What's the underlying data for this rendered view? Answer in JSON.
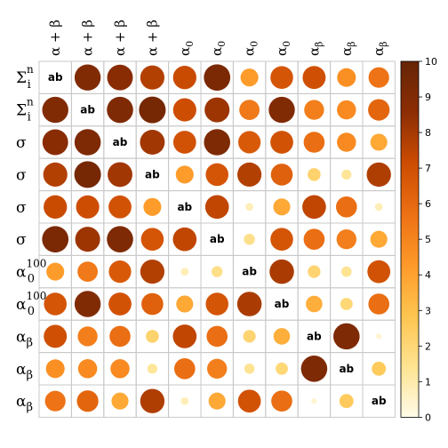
{
  "chart_data": {
    "type": "heatmap",
    "subtype": "correlation-circle-matrix",
    "variables": [
      {
        "base": "Σ",
        "sub": "i",
        "sup": "n"
      },
      {
        "base": "Σ",
        "sub": "i",
        "sup": "n"
      },
      {
        "base": "σ",
        "sub": "",
        "sup": ""
      },
      {
        "base": "σ",
        "sub": "",
        "sup": ""
      },
      {
        "base": "σ",
        "sub": "",
        "sup": ""
      },
      {
        "base": "σ",
        "sub": "",
        "sup": ""
      },
      {
        "base": "α",
        "sub": "0",
        "sup": "100"
      },
      {
        "base": "α",
        "sub": "0",
        "sup": "100"
      },
      {
        "base": "α",
        "sub": "β",
        "sup": ""
      },
      {
        "base": "α",
        "sub": "β",
        "sup": ""
      },
      {
        "base": "α",
        "sub": "β",
        "sup": ""
      }
    ],
    "column_labels": [
      {
        "base": "α + β",
        "sub": ""
      },
      {
        "base": "α + β",
        "sub": ""
      },
      {
        "base": "α + β",
        "sub": ""
      },
      {
        "base": "α + β",
        "sub": ""
      },
      {
        "base": "α",
        "sub": "0"
      },
      {
        "base": "α",
        "sub": "0"
      },
      {
        "base": "α",
        "sub": "0"
      },
      {
        "base": "α",
        "sub": "0"
      },
      {
        "base": "α",
        "sub": "β"
      },
      {
        "base": "α",
        "sub": "β"
      },
      {
        "base": "α",
        "sub": "β"
      }
    ],
    "diagonal_label": "ab",
    "values": [
      [
        null,
        9,
        8.7,
        7.7,
        7.2,
        9.2,
        4.2,
        6.8,
        7,
        4.6,
        5.6
      ],
      [
        9,
        null,
        9.1,
        9.4,
        7.1,
        8.2,
        5.4,
        9,
        5.2,
        4.8,
        6.1
      ],
      [
        8.7,
        9.1,
        null,
        8.1,
        6.9,
        9.1,
        6.6,
        6.9,
        5.8,
        4.8,
        3.8
      ],
      [
        7.7,
        9.4,
        8.1,
        null,
        4.2,
        6.8,
        7.7,
        6.3,
        2.2,
        1.3,
        7.8
      ],
      [
        7.2,
        7.1,
        6.9,
        4.2,
        null,
        7.4,
        0.8,
        3.8,
        7.4,
        5.8,
        0.8
      ],
      [
        9.2,
        8.2,
        9.1,
        6.8,
        7.4,
        null,
        1.6,
        6.8,
        5.8,
        5.2,
        3.8
      ],
      [
        4.2,
        5.4,
        6.6,
        7.7,
        0.8,
        1.6,
        null,
        7.9,
        2.1,
        1.4,
        6.9
      ],
      [
        6.8,
        9,
        6.9,
        6.3,
        3.8,
        6.8,
        7.9,
        null,
        3.6,
        2,
        5.8
      ],
      [
        7,
        5.2,
        5.8,
        2.2,
        7.4,
        5.8,
        2.1,
        3.6,
        null,
        9.1,
        0.4
      ],
      [
        4.6,
        4.8,
        4.8,
        1.3,
        5.8,
        5.2,
        1.4,
        2,
        9.1,
        null,
        2.6
      ],
      [
        5.6,
        6.1,
        3.8,
        7.8,
        0.8,
        3.8,
        6.9,
        5.8,
        0.4,
        2.6,
        null
      ]
    ],
    "colorbar": {
      "range": [
        0,
        10
      ],
      "ticks": [
        0,
        1,
        2,
        3,
        4,
        5,
        6,
        7,
        8,
        9,
        10
      ],
      "colors": [
        "#fffbe8",
        "#fee391",
        "#fec44f",
        "#fe9929",
        "#ec7014",
        "#cc4c02",
        "#8c2d04",
        "#662506"
      ]
    },
    "grid": true,
    "title": "",
    "xlabel": "",
    "ylabel": ""
  }
}
